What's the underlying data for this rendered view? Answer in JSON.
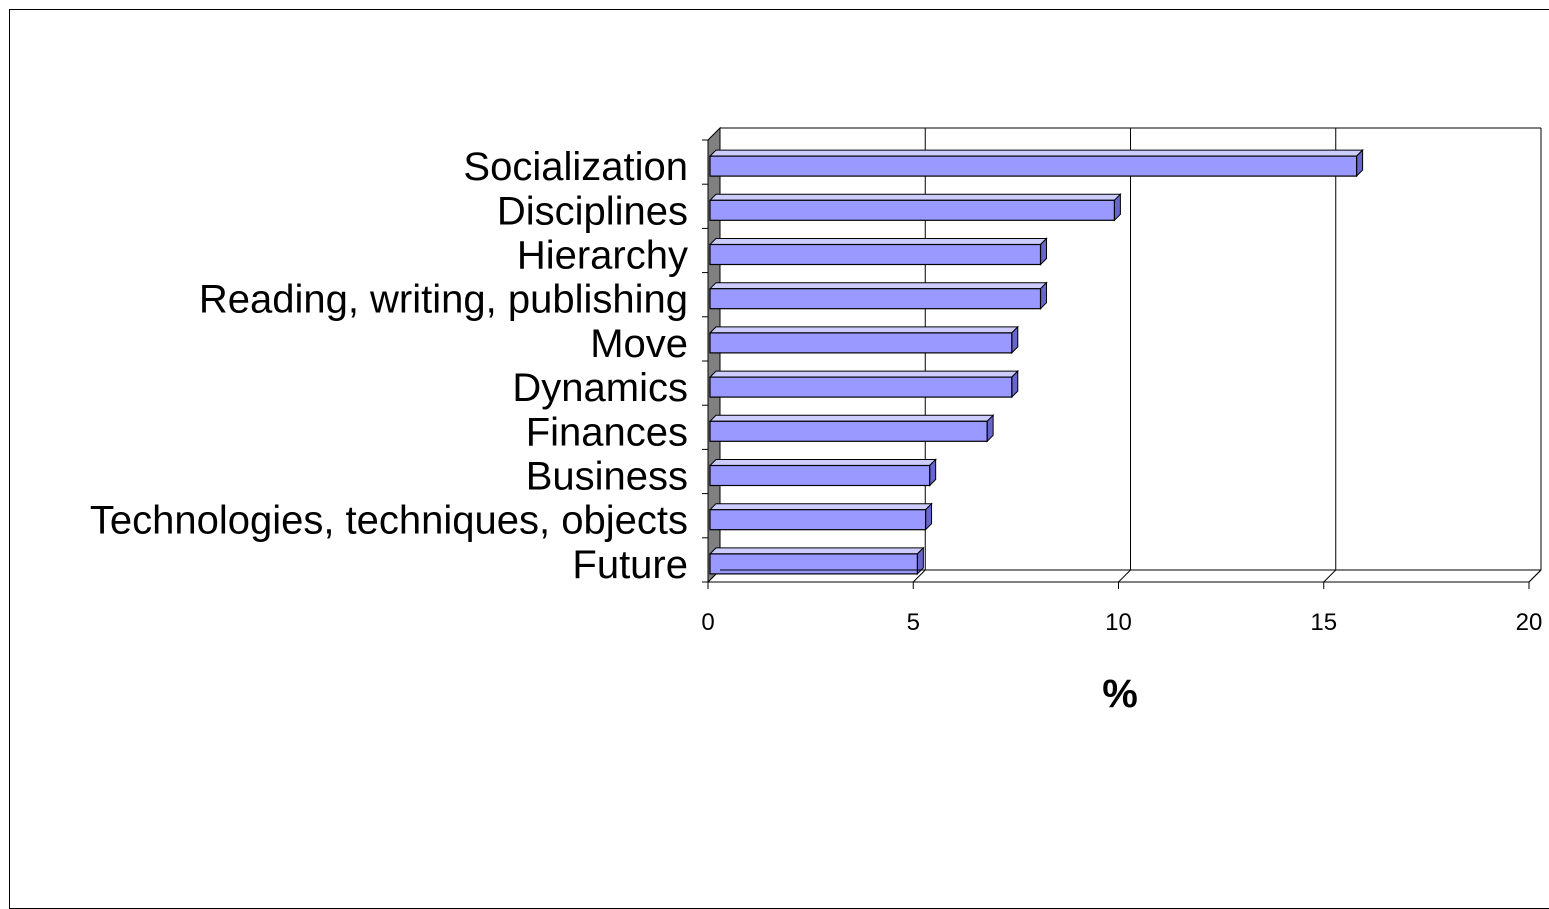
{
  "chart_data": {
    "type": "bar",
    "orientation": "horizontal",
    "style": "3d",
    "title": "",
    "xlabel": "%",
    "ylabel": "",
    "categories": [
      "Socialization",
      "Disciplines",
      "Hierarchy",
      "Reading, writing, publishing",
      "Move",
      "Dynamics",
      "Finances",
      "Business",
      "Technologies, techniques, objects",
      "Future"
    ],
    "values": [
      15.8,
      9.9,
      8.1,
      8.1,
      7.4,
      7.4,
      6.8,
      5.4,
      5.3,
      5.1
    ],
    "xlim": [
      0,
      20
    ],
    "xticks": [
      "0",
      "5",
      "10",
      "15",
      "20"
    ],
    "grid": "vertical",
    "legend": "none",
    "colors": {
      "bar_front": "#9999ff",
      "bar_top": "#ccccff",
      "bar_side": "#6666cc",
      "wall": "#808080",
      "gridline": "#000000"
    }
  }
}
